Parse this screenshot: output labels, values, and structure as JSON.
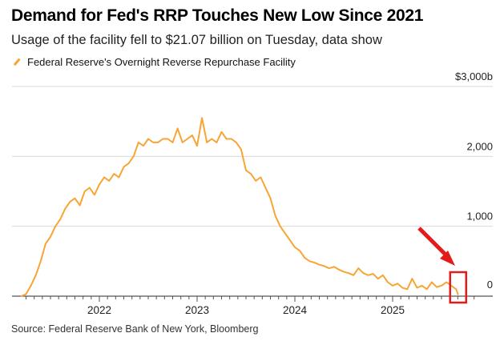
{
  "title": "Demand for Fed's RRP Touches New Low Since 2021",
  "subtitle": "Usage of the facility fell to $21.07 billion on Tuesday, data show",
  "source": "Source: Federal Reserve Bank of New York, Bloomberg",
  "chart_data": {
    "type": "line",
    "title": "Demand for Fed's RRP Touches New Low Since 2021",
    "xlabel": "",
    "ylabel": "",
    "ylim": [
      0,
      3000
    ],
    "xlim": [
      2021.1,
      2025.9
    ],
    "y_ticks": [
      {
        "v": 3000,
        "label": "$3,000b"
      },
      {
        "v": 2000,
        "label": "2,000"
      },
      {
        "v": 1000,
        "label": "1,000"
      },
      {
        "v": 0,
        "label": "0"
      }
    ],
    "x_ticks": [
      {
        "v": 2022,
        "label": "2022"
      },
      {
        "v": 2023,
        "label": "2023"
      },
      {
        "v": 2024,
        "label": "2024"
      },
      {
        "v": 2025,
        "label": "2025"
      }
    ],
    "grid": true,
    "legend_position": "top-left",
    "color": "#f7a534",
    "annotation_color": "#e31b1b",
    "series": [
      {
        "name": "Federal Reserve's Overnight Reverse Repurchase Facility",
        "x": [
          2021.2,
          2021.25,
          2021.3,
          2021.35,
          2021.4,
          2021.45,
          2021.5,
          2021.55,
          2021.6,
          2021.65,
          2021.7,
          2021.75,
          2021.8,
          2021.85,
          2021.9,
          2021.95,
          2022.0,
          2022.05,
          2022.1,
          2022.15,
          2022.2,
          2022.25,
          2022.3,
          2022.35,
          2022.4,
          2022.45,
          2022.5,
          2022.55,
          2022.6,
          2022.65,
          2022.7,
          2022.75,
          2022.8,
          2022.85,
          2022.9,
          2022.95,
          2023.0,
          2023.05,
          2023.1,
          2023.15,
          2023.2,
          2023.25,
          2023.3,
          2023.35,
          2023.4,
          2023.45,
          2023.5,
          2023.55,
          2023.6,
          2023.65,
          2023.7,
          2023.75,
          2023.8,
          2023.85,
          2023.9,
          2023.95,
          2024.0,
          2024.05,
          2024.1,
          2024.15,
          2024.2,
          2024.25,
          2024.3,
          2024.35,
          2024.4,
          2024.45,
          2024.5,
          2024.55,
          2024.6,
          2024.65,
          2024.7,
          2024.75,
          2024.8,
          2024.85,
          2024.9,
          2024.95,
          2025.0,
          2025.05,
          2025.1,
          2025.15,
          2025.2,
          2025.25,
          2025.3,
          2025.35,
          2025.4,
          2025.45,
          2025.5,
          2025.55,
          2025.6,
          2025.65,
          2025.67
        ],
        "values": [
          0,
          30,
          150,
          300,
          500,
          750,
          850,
          1000,
          1100,
          1250,
          1350,
          1400,
          1300,
          1500,
          1550,
          1450,
          1600,
          1700,
          1650,
          1750,
          1700,
          1850,
          1900,
          2000,
          2200,
          2150,
          2250,
          2200,
          2200,
          2250,
          2250,
          2200,
          2400,
          2200,
          2250,
          2300,
          2150,
          2550,
          2200,
          2250,
          2200,
          2350,
          2250,
          2250,
          2200,
          2100,
          1800,
          1750,
          1650,
          1700,
          1550,
          1400,
          1150,
          1000,
          900,
          800,
          700,
          650,
          550,
          500,
          480,
          450,
          430,
          400,
          420,
          380,
          350,
          330,
          300,
          400,
          330,
          300,
          320,
          250,
          300,
          200,
          150,
          180,
          120,
          100,
          250,
          120,
          150,
          100,
          200,
          130,
          150,
          200,
          150,
          100,
          21.07
        ]
      }
    ]
  },
  "annotation": {
    "box": "latest reading highlighted",
    "arrow": "pointing to latest reading"
  }
}
